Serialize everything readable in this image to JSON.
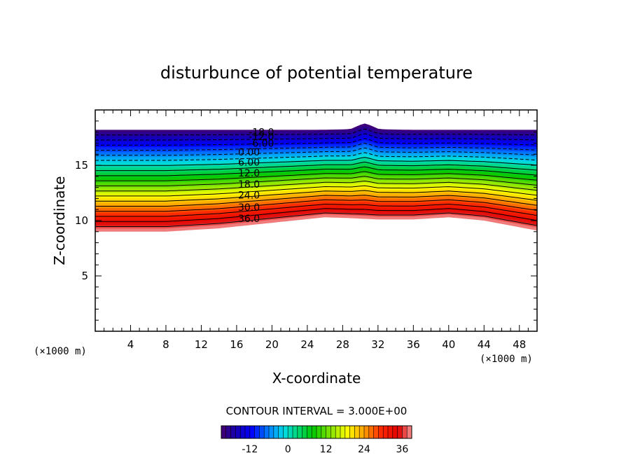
{
  "chart_data": {
    "type": "contour",
    "title": "disturbunce of potential temperature",
    "xlabel": "X-coordinate",
    "ylabel": "Z-coordinate",
    "x_unit": "(×1000 m)",
    "y_unit": "(×1000 m)",
    "xlim": [
      0,
      50
    ],
    "ylim": [
      0,
      20
    ],
    "x_ticks": [
      4,
      8,
      12,
      16,
      20,
      24,
      28,
      32,
      36,
      40,
      44,
      48
    ],
    "y_ticks": [
      5,
      10,
      15
    ],
    "contour_interval_text": "CONTOUR INTERVAL = 3.000E+00",
    "contour_interval": 3,
    "top_boundary": [
      [
        0,
        18.2
      ],
      [
        10,
        18.2
      ],
      [
        20,
        18.2
      ],
      [
        25,
        18.2
      ],
      [
        29,
        18.25
      ],
      [
        30.5,
        18.5
      ],
      [
        32,
        18.25
      ],
      [
        36,
        18.2
      ],
      [
        50,
        18.2
      ]
    ],
    "bottom_boundary": [
      [
        0,
        9.0
      ],
      [
        8,
        9.0
      ],
      [
        14,
        9.3
      ],
      [
        20,
        9.8
      ],
      [
        26,
        10.3
      ],
      [
        28,
        10.25
      ],
      [
        32,
        10.1
      ],
      [
        36,
        10.1
      ],
      [
        40,
        10.3
      ],
      [
        44,
        10.0
      ],
      [
        50,
        9.1
      ]
    ],
    "contour_labels": [
      {
        "text": "-18.0",
        "value": -18,
        "x": 18.8,
        "z": 18.0
      },
      {
        "text": "-12.0",
        "value": -12,
        "x": 18.8,
        "z": 17.6
      },
      {
        "text": "-6.00",
        "value": -6,
        "x": 18.8,
        "z": 17.0
      },
      {
        "text": "0.00",
        "value": 0,
        "x": 17.4,
        "z": 16.2
      },
      {
        "text": "6.00",
        "value": 6,
        "x": 17.4,
        "z": 15.3
      },
      {
        "text": "12.0",
        "value": 12,
        "x": 17.4,
        "z": 14.3
      },
      {
        "text": "18.0",
        "value": 18,
        "x": 17.4,
        "z": 13.3
      },
      {
        "text": "24.0",
        "value": 24,
        "x": 17.4,
        "z": 12.3
      },
      {
        "text": "30.0",
        "value": 30,
        "x": 17.4,
        "z": 11.2
      },
      {
        "text": "36.0",
        "value": 36,
        "x": 17.4,
        "z": 10.2
      }
    ],
    "colorbar": {
      "min": -21,
      "max": 39,
      "tick_labels": [
        "-12",
        "0",
        "12",
        "24",
        "36"
      ],
      "tick_values": [
        -12,
        0,
        12,
        24,
        36
      ]
    }
  }
}
